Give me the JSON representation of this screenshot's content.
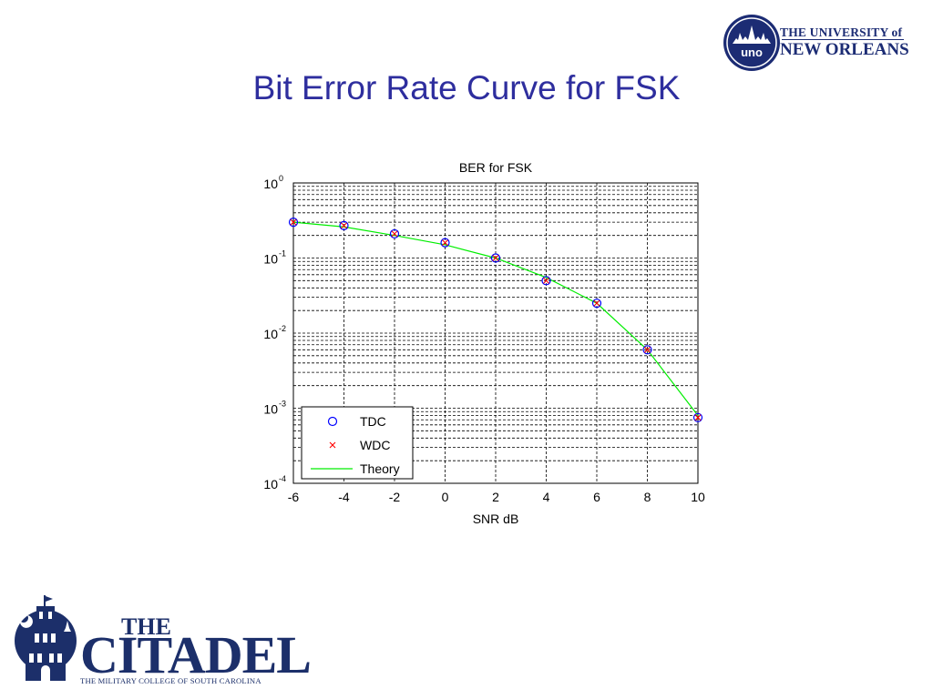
{
  "slide": {
    "title": "Bit Error Rate Curve for FSK"
  },
  "logos": {
    "uno": {
      "line1": "THE UNIVERSITY of",
      "line2": "NEW ORLEANS",
      "seal_text": "uno"
    },
    "citadel": {
      "the": "THE",
      "name": "CITADEL",
      "subtitle": "THE MILITARY COLLEGE OF SOUTH CAROLINA"
    },
    "colors": {
      "uno_navy": "#1c2c74",
      "citadel_navy": "#1c2f6a"
    }
  },
  "chart_data": {
    "type": "line",
    "title": "BER for FSK",
    "xlabel": "SNR dB",
    "ylabel": "",
    "xlim": [
      -6,
      10
    ],
    "ylim": [
      0.0001,
      1
    ],
    "yscale": "log",
    "grid": true,
    "x_ticks": [
      -6,
      -4,
      -2,
      0,
      2,
      4,
      6,
      8,
      10
    ],
    "y_ticks": [
      {
        "value": 1,
        "base": "10",
        "exp": "0"
      },
      {
        "value": 0.1,
        "base": "10",
        "exp": "-1"
      },
      {
        "value": 0.01,
        "base": "10",
        "exp": "-2"
      },
      {
        "value": 0.001,
        "base": "10",
        "exp": "-3"
      },
      {
        "value": 0.0001,
        "base": "10",
        "exp": "-4"
      }
    ],
    "x": [
      -6,
      -4,
      -2,
      0,
      2,
      4,
      6,
      8,
      10
    ],
    "series": [
      {
        "name": "TDC",
        "marker": "circle",
        "color": "#0000ff",
        "values": [
          0.3,
          0.27,
          0.21,
          0.16,
          0.1,
          0.05,
          0.025,
          0.006,
          0.00075
        ]
      },
      {
        "name": "WDC",
        "marker": "x",
        "color": "#ff0000",
        "values": [
          0.3,
          0.27,
          0.21,
          0.16,
          0.1,
          0.05,
          0.025,
          0.006,
          0.00075
        ]
      },
      {
        "name": "Theory",
        "marker": "line",
        "color": "#00ee00",
        "values": [
          0.3,
          0.26,
          0.2,
          0.15,
          0.1,
          0.055,
          0.025,
          0.006,
          0.0008
        ]
      }
    ],
    "legend": {
      "placement": "bottom-left"
    }
  }
}
